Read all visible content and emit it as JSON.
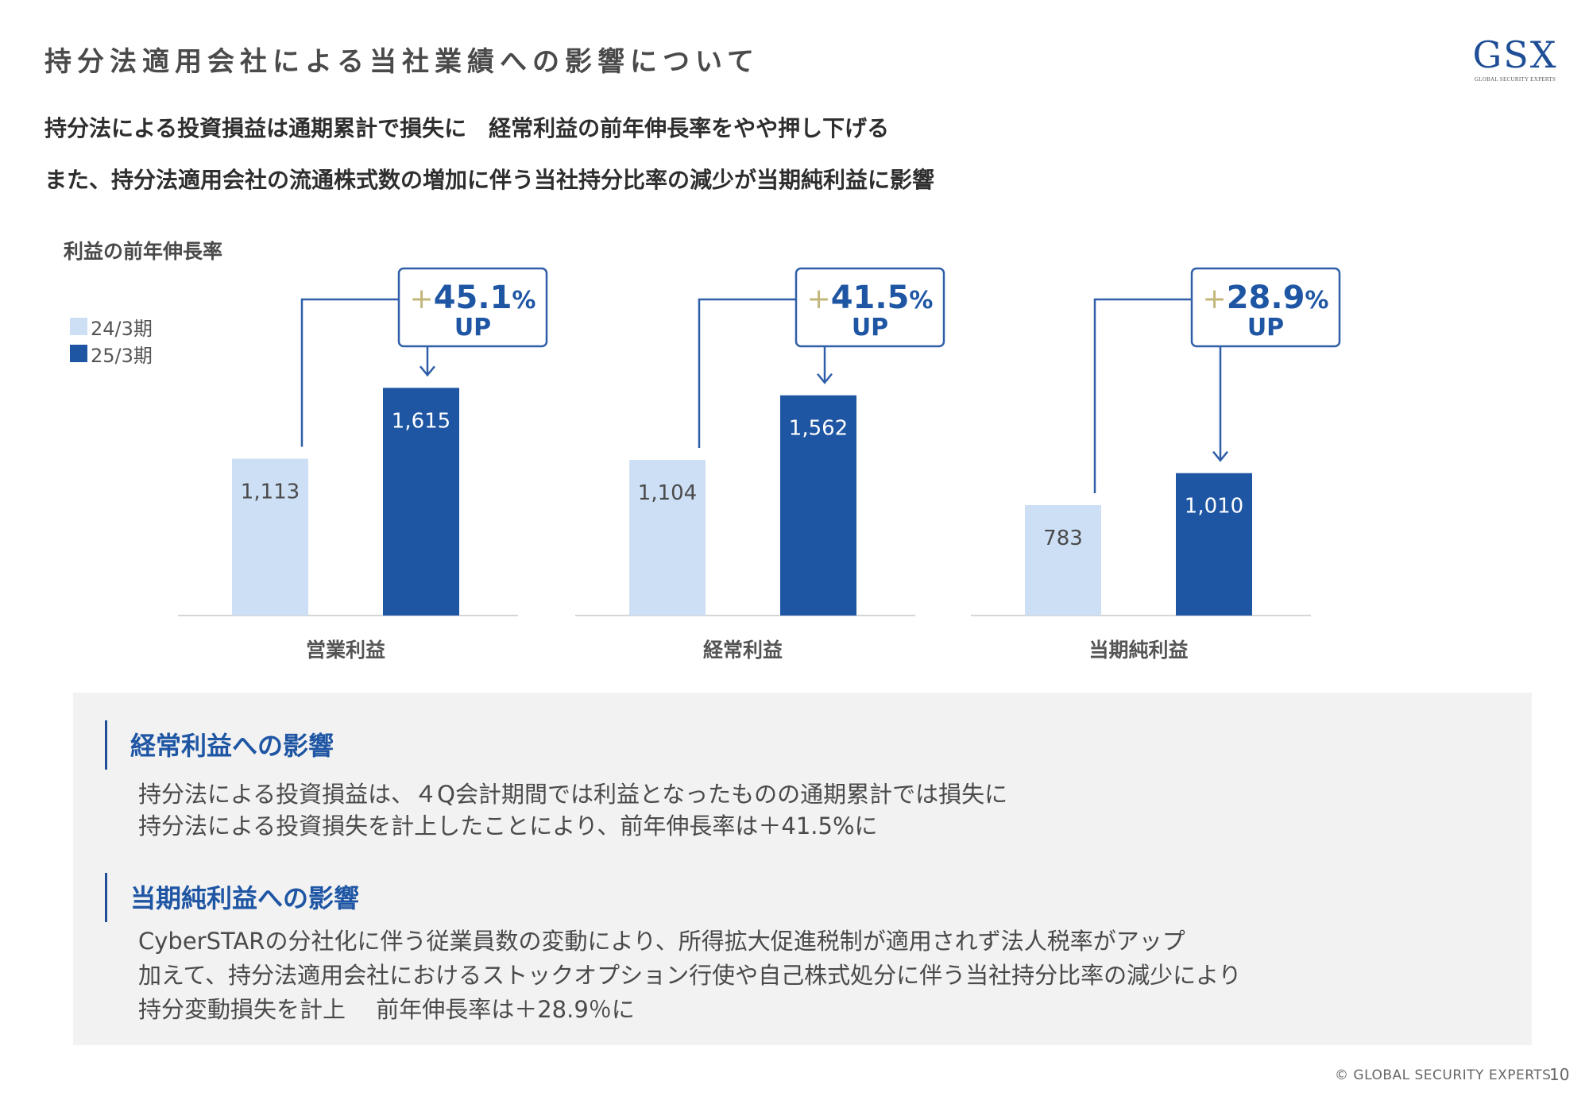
{
  "header": {
    "title": "持分法適用会社による当社業績への影響について",
    "logo_mark": "GSX",
    "logo_sub": "GLOBAL SECURITY EXPERTS"
  },
  "lead": {
    "line1": "持分法による投資損益は通期累計で損失に　経常利益の前年伸長率をやや押し下げる",
    "line2": "また、持分法適用会社の流通株式数の増加に伴う当社持分比率の減少が当期純利益に影響"
  },
  "chart_data": {
    "type": "bar",
    "title": "利益の前年伸長率",
    "categories": [
      "営業利益",
      "経常利益",
      "当期純利益"
    ],
    "series": [
      {
        "name": "24/3期",
        "values": [
          1113,
          1104,
          783
        ],
        "labels": [
          "1,113",
          "1,104",
          "783"
        ],
        "color": "#cddff5"
      },
      {
        "name": "25/3期",
        "values": [
          1615,
          1562,
          1010
        ],
        "labels": [
          "1,615",
          "1,562",
          "1,010"
        ],
        "color": "#1f56a4"
      }
    ],
    "growth": [
      {
        "sign": "+",
        "value": "45.1",
        "unit": "%",
        "text": "UP"
      },
      {
        "sign": "+",
        "value": "41.5",
        "unit": "%",
        "text": "UP"
      },
      {
        "sign": "+",
        "value": "28.9",
        "unit": "%",
        "text": "UP"
      }
    ],
    "ylim": [
      0,
      1800
    ],
    "legend_position": "top-left",
    "grid": false,
    "colors": {
      "accent": "#1f56a4",
      "light": "#cddff5",
      "plus": "#c2b77a",
      "axis": "#d6d6d6",
      "connector": "#2f5fa8"
    }
  },
  "sections": [
    {
      "title": "経常利益への影響",
      "lines": [
        "持分法による投資損益は、４Q会計期間では利益となったものの通期累計では損失に",
        "持分法による投資損失を計上したことにより、前年伸長率は＋41.5%に"
      ]
    },
    {
      "title": "当期純利益への影響",
      "lines": [
        "CyberSTARの分社化に伴う従業員数の変動により、所得拡大促進税制が適用されず法人税率がアップ",
        "加えて、持分法適用会社におけるストックオプション行使や自己株式処分に伴う当社持分比率の減少により",
        "持分変動損失を計上　 前年伸長率は＋28.9％に"
      ]
    }
  ],
  "footer": {
    "copyright": "© GLOBAL SECURITY EXPERTS",
    "page": "10"
  }
}
